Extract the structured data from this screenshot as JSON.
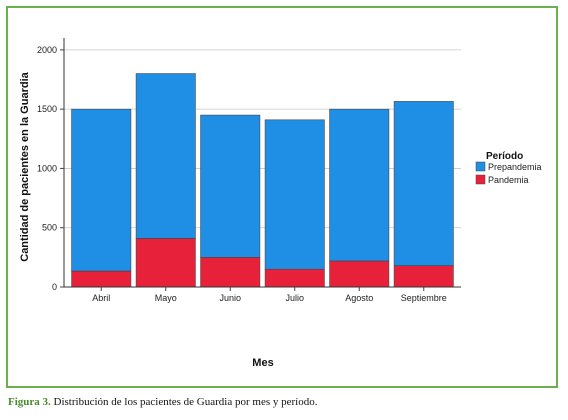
{
  "chart_data": {
    "type": "bar",
    "stacked": true,
    "categories": [
      "Abril",
      "Mayo",
      "Junio",
      "Julio",
      "Agosto",
      "Septiembre"
    ],
    "series": [
      {
        "name": "Pandemia",
        "color": "#e8213a",
        "values": [
          135,
          410,
          250,
          150,
          220,
          180
        ]
      },
      {
        "name": "Prepandemia",
        "color": "#1f8fe6",
        "values": [
          1365,
          1390,
          1200,
          1260,
          1280,
          1385
        ]
      }
    ],
    "totals": [
      1500,
      1800,
      1450,
      1410,
      1500,
      1565
    ],
    "xlabel": "Mes",
    "ylabel": "Cantidad de pacientes en la Guardia",
    "ylim": [
      0,
      2100
    ],
    "yticks": [
      0,
      500,
      1000,
      1500,
      2000
    ],
    "grid": true,
    "legend_title": "Período",
    "legend_position": "right"
  },
  "caption": {
    "figure_label": "Figura 3.",
    "text": " Distribución de los pacientes de Guardia por mes y período."
  }
}
